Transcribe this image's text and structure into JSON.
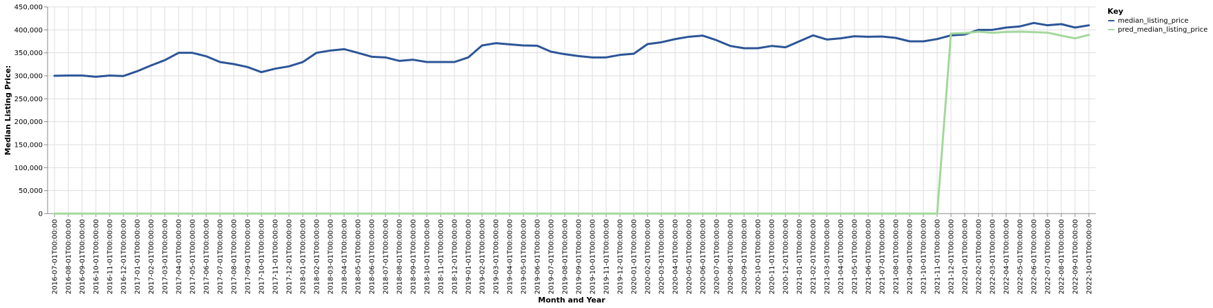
{
  "chart_data": {
    "type": "line",
    "xlabel": "Month and Year",
    "ylabel": "Median Listing Price:",
    "ylim": [
      0,
      450000
    ],
    "yticks": [
      0,
      50000,
      100000,
      150000,
      200000,
      250000,
      300000,
      350000,
      400000,
      450000
    ],
    "ytick_labels": [
      "0",
      "50,000",
      "100,000",
      "150,000",
      "200,000",
      "250,000",
      "300,000",
      "350,000",
      "400,000",
      "450,000"
    ],
    "grid": true,
    "legend": {
      "title": "Key",
      "placement": "right"
    },
    "x": [
      "2016-07-01T00:00:00",
      "2016-08-01T00:00:00",
      "2016-09-01T00:00:00",
      "2016-10-01T00:00:00",
      "2016-11-01T00:00:00",
      "2016-12-01T00:00:00",
      "2017-01-01T00:00:00",
      "2017-02-01T00:00:00",
      "2017-03-01T00:00:00",
      "2017-04-01T00:00:00",
      "2017-05-01T00:00:00",
      "2017-06-01T00:00:00",
      "2017-07-01T00:00:00",
      "2017-08-01T00:00:00",
      "2017-09-01T00:00:00",
      "2017-10-01T00:00:00",
      "2017-11-01T00:00:00",
      "2017-12-01T00:00:00",
      "2018-01-01T00:00:00",
      "2018-02-01T00:00:00",
      "2018-03-01T00:00:00",
      "2018-04-01T00:00:00",
      "2018-05-01T00:00:00",
      "2018-06-01T00:00:00",
      "2018-07-01T00:00:00",
      "2018-08-01T00:00:00",
      "2018-09-01T00:00:00",
      "2018-10-01T00:00:00",
      "2018-11-01T00:00:00",
      "2018-12-01T00:00:00",
      "2019-01-01T00:00:00",
      "2019-02-01T00:00:00",
      "2019-03-01T00:00:00",
      "2019-04-01T00:00:00",
      "2019-05-01T00:00:00",
      "2019-06-01T00:00:00",
      "2019-07-01T00:00:00",
      "2019-08-01T00:00:00",
      "2019-09-01T00:00:00",
      "2019-10-01T00:00:00",
      "2019-11-01T00:00:00",
      "2019-12-01T00:00:00",
      "2020-01-01T00:00:00",
      "2020-02-01T00:00:00",
      "2020-03-01T00:00:00",
      "2020-04-01T00:00:00",
      "2020-05-01T00:00:00",
      "2020-06-01T00:00:00",
      "2020-07-01T00:00:00",
      "2020-08-01T00:00:00",
      "2020-09-01T00:00:00",
      "2020-10-01T00:00:00",
      "2020-11-01T00:00:00",
      "2020-12-01T00:00:00",
      "2021-01-01T00:00:00",
      "2021-02-01T00:00:00",
      "2021-03-01T00:00:00",
      "2021-04-01T00:00:00",
      "2021-05-01T00:00:00",
      "2021-06-01T00:00:00",
      "2021-07-01T00:00:00",
      "2021-08-01T00:00:00",
      "2021-09-01T00:00:00",
      "2021-10-01T00:00:00",
      "2021-11-01T00:00:00",
      "2021-12-01T00:00:00",
      "2022-01-01T00:00:00",
      "2022-02-01T00:00:00",
      "2022-03-01T00:00:00",
      "2022-04-01T00:00:00",
      "2022-05-01T00:00:00",
      "2022-06-01T00:00:00",
      "2022-07-01T00:00:00",
      "2022-08-01T00:00:00",
      "2022-09-01T00:00:00",
      "2022-10-01T00:00:00"
    ],
    "series": [
      {
        "name": "median_listing_price",
        "color": "#2c5597",
        "values": [
          300000,
          300500,
          300500,
          298000,
          300500,
          299500,
          310000,
          322500,
          334000,
          350000,
          350000,
          342500,
          330000,
          325500,
          319000,
          308000,
          315500,
          320500,
          329900,
          350000,
          355000,
          358000,
          350000,
          341500,
          340000,
          332500,
          335000,
          330000,
          330000,
          330000,
          340000,
          366000,
          371000,
          368500,
          366000,
          365500,
          352500,
          347000,
          343000,
          339900,
          340000,
          345500,
          348000,
          369000,
          373000,
          379900,
          385000,
          387500,
          377500,
          365000,
          360000,
          360000,
          365000,
          362000,
          375000,
          388000,
          379000,
          381500,
          386000,
          385000,
          385500,
          382500,
          375000,
          375000,
          380000,
          388000,
          390000,
          400000,
          400000,
          405000,
          407500,
          415000,
          410000,
          412500,
          405000,
          410000
        ]
      },
      {
        "name": "pred_median_listing_price",
        "color": "#a3d89b",
        "values": [
          0,
          0,
          0,
          0,
          0,
          0,
          0,
          0,
          0,
          0,
          0,
          0,
          0,
          0,
          0,
          0,
          0,
          0,
          0,
          0,
          0,
          0,
          0,
          0,
          0,
          0,
          0,
          0,
          0,
          0,
          0,
          0,
          0,
          0,
          0,
          0,
          0,
          0,
          0,
          0,
          0,
          0,
          0,
          0,
          0,
          0,
          0,
          0,
          0,
          0,
          0,
          0,
          0,
          0,
          0,
          0,
          0,
          0,
          0,
          0,
          0,
          0,
          0,
          0,
          0,
          392000,
          393000,
          396000,
          393500,
          395500,
          396000,
          395000,
          394000,
          387500,
          381500,
          389000
        ]
      }
    ]
  }
}
